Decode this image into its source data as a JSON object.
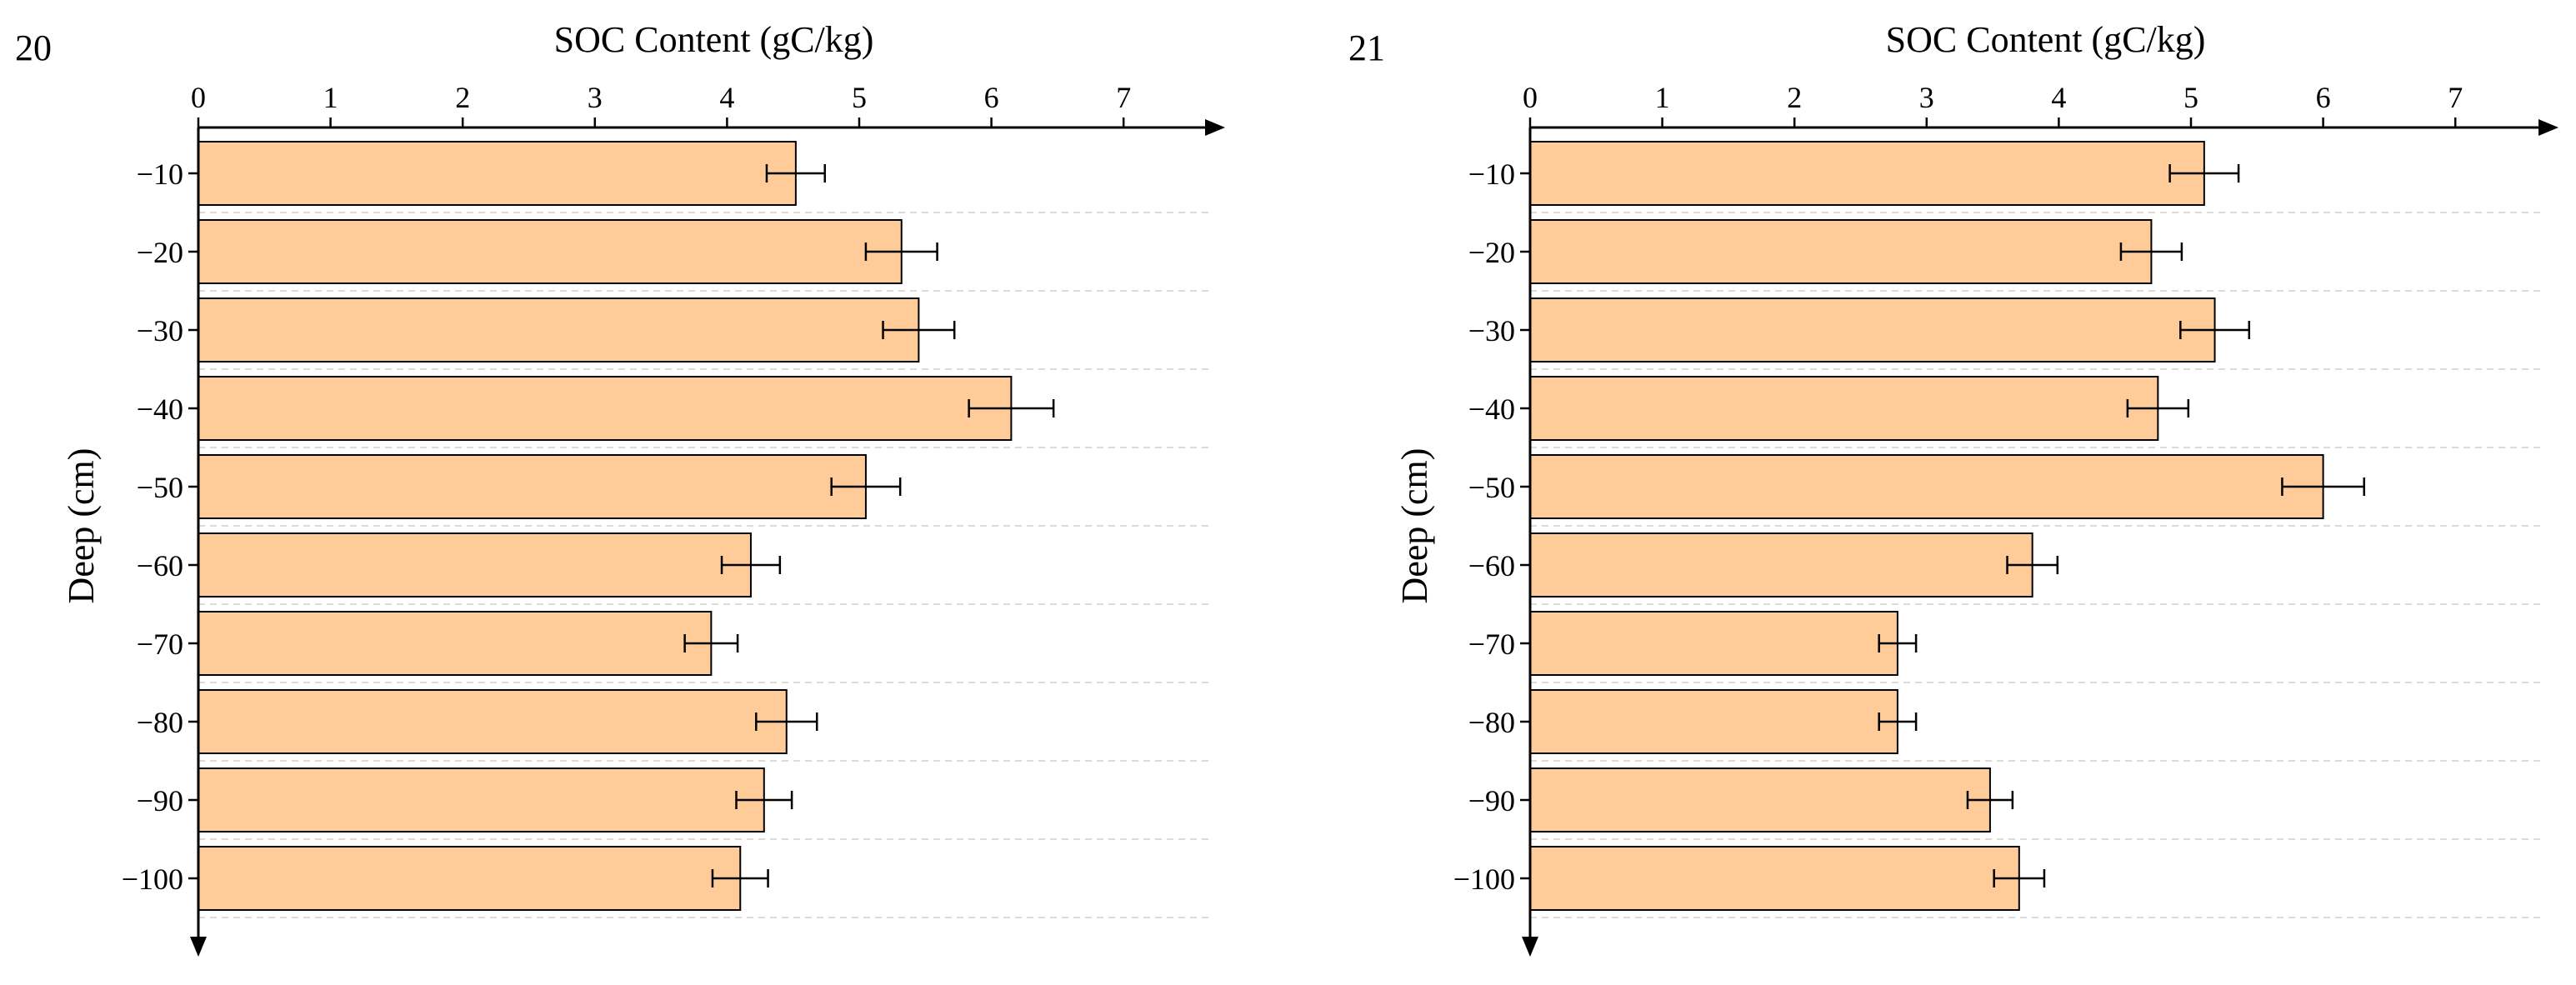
{
  "chart_data": [
    {
      "type": "bar",
      "orientation": "horizontal",
      "panel_label": "20",
      "xlabel": "SOC Content (gC/kg)",
      "ylabel": "Deep (cm)",
      "xlim": [
        0,
        7.7
      ],
      "xticks": [
        0,
        1,
        2,
        3,
        4,
        5,
        6,
        7
      ],
      "categories": [
        "−10",
        "−20",
        "−30",
        "−40",
        "−50",
        "−60",
        "−70",
        "−80",
        "−90",
        "−100"
      ],
      "values": [
        4.52,
        5.32,
        5.45,
        6.15,
        5.05,
        4.18,
        3.88,
        4.45,
        4.28,
        4.1
      ],
      "errors": [
        0.22,
        0.27,
        0.27,
        0.32,
        0.26,
        0.22,
        0.2,
        0.23,
        0.21,
        0.21
      ],
      "bar_color": "#FFCC99",
      "grid": true
    },
    {
      "type": "bar",
      "orientation": "horizontal",
      "panel_label": "21",
      "xlabel": "SOC Content (gC/kg)",
      "ylabel": "Deep (cm)",
      "xlim": [
        0,
        7.7
      ],
      "xticks": [
        0,
        1,
        2,
        3,
        4,
        5,
        6,
        7
      ],
      "categories": [
        "−10",
        "−20",
        "−30",
        "−40",
        "−50",
        "−60",
        "−70",
        "−80",
        "−90",
        "−100"
      ],
      "values": [
        5.1,
        4.7,
        5.18,
        4.75,
        6.0,
        3.8,
        2.78,
        2.78,
        3.48,
        3.7
      ],
      "errors": [
        0.26,
        0.23,
        0.26,
        0.23,
        0.31,
        0.19,
        0.14,
        0.14,
        0.17,
        0.19
      ],
      "bar_color": "#FFCC99",
      "grid": true
    }
  ]
}
